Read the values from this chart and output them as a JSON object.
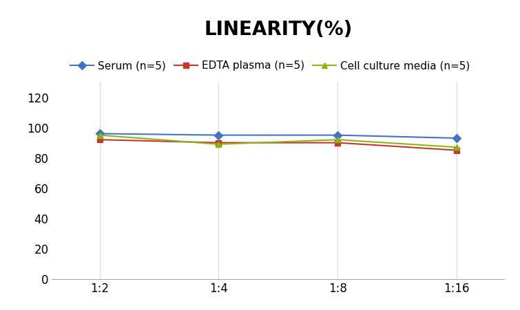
{
  "title": "LINEARITY(%)",
  "x_labels": [
    "1:2",
    "1:4",
    "1:8",
    "1:16"
  ],
  "x_positions": [
    0,
    1,
    2,
    3
  ],
  "series": [
    {
      "label": "Serum (n=5)",
      "color": "#4472C4",
      "marker": "D",
      "markersize": 6,
      "values": [
        96,
        95,
        95,
        93
      ]
    },
    {
      "label": "EDTA plasma (n=5)",
      "color": "#C0392B",
      "marker": "s",
      "markersize": 6,
      "values": [
        92,
        90,
        90,
        85
      ]
    },
    {
      "label": "Cell culture media (n=5)",
      "color": "#8DB414",
      "marker": "^",
      "markersize": 6,
      "values": [
        95,
        89,
        92,
        87
      ]
    }
  ],
  "ylim": [
    0,
    130
  ],
  "yticks": [
    0,
    20,
    40,
    60,
    80,
    100,
    120
  ],
  "title_fontsize": 20,
  "legend_fontsize": 11,
  "tick_fontsize": 12,
  "background_color": "#ffffff",
  "grid_color": "#d9d9d9"
}
